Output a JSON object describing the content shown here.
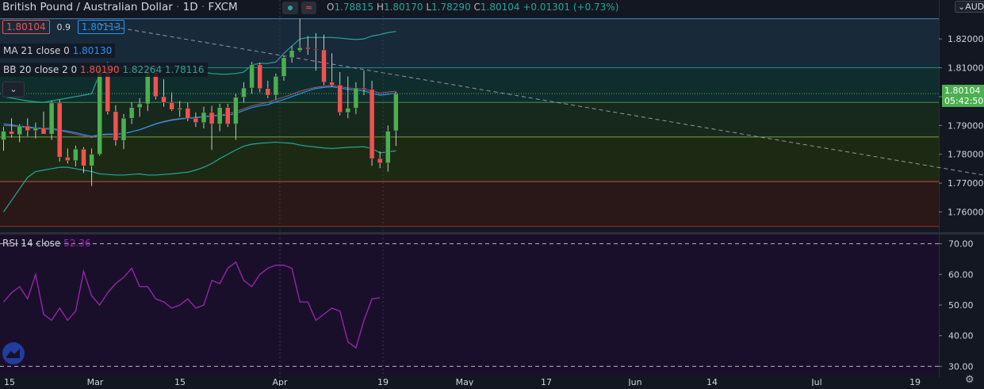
{
  "header": {
    "symbol": "British Pound / Australian Dollar",
    "interval": "1D",
    "exchange": "FXCM",
    "ohlc": [
      {
        "k": "O",
        "v": "1.78815"
      },
      {
        "k": "H",
        "v": "1.80170"
      },
      {
        "k": "L",
        "v": "1.78290"
      },
      {
        "k": "C",
        "v": "1.80104"
      }
    ],
    "change": "+0.01301 (+0.73%)"
  },
  "currency": "AUD",
  "bid_price": "1.80104",
  "spread": "0.9",
  "ask_price": "1.80113",
  "indicators": {
    "ma": {
      "label": "MA 21 close 0",
      "value": "1.80130"
    },
    "bb": {
      "label": "BB 20 close 2 0",
      "basis": "1.80190",
      "upper": "1.82264",
      "lower": "1.78116"
    },
    "rsi": {
      "label": "RSI 14 close",
      "value": "52.36"
    }
  },
  "last_price_tag": "1.80104",
  "countdown": "05:42:50",
  "colors": {
    "up": "#4caf50",
    "down": "#ef5350",
    "bg": "#131722",
    "bb": "#26a69a",
    "ma": "#2196f3",
    "rsi": "#9c27b0"
  },
  "chart_data": {
    "type": "candlestick",
    "price_axis": {
      "min": 1.753,
      "max": 1.8335,
      "ticks": [
        "1.82000",
        "1.81000",
        "1.80000",
        "1.79000",
        "1.78000",
        "1.77000",
        "1.76000"
      ]
    },
    "rsi_axis": {
      "min": 27,
      "max": 73,
      "ticks": [
        "70.00",
        "60.00",
        "50.00",
        "40.00",
        "30.00"
      ],
      "levels": [
        70,
        30
      ]
    },
    "x_ticks": [
      "15",
      "Mar",
      "15",
      "Apr",
      "19",
      "May",
      "17",
      "Jun",
      "14",
      "Jul",
      "19"
    ],
    "candles": [
      {
        "o": 1.785,
        "h": 1.7895,
        "l": 1.7812,
        "c": 1.788
      },
      {
        "o": 1.788,
        "h": 1.7925,
        "l": 1.7858,
        "c": 1.787
      },
      {
        "o": 1.7868,
        "h": 1.7905,
        "l": 1.7842,
        "c": 1.7898
      },
      {
        "o": 1.7898,
        "h": 1.7925,
        "l": 1.7862,
        "c": 1.7882
      },
      {
        "o": 1.7882,
        "h": 1.791,
        "l": 1.7855,
        "c": 1.7892
      },
      {
        "o": 1.7892,
        "h": 1.7948,
        "l": 1.7872,
        "c": 1.787
      },
      {
        "o": 1.787,
        "h": 1.7985,
        "l": 1.785,
        "c": 1.7978
      },
      {
        "o": 1.7978,
        "h": 1.799,
        "l": 1.7775,
        "c": 1.779
      },
      {
        "o": 1.779,
        "h": 1.782,
        "l": 1.7768,
        "c": 1.7778
      },
      {
        "o": 1.7778,
        "h": 1.783,
        "l": 1.7758,
        "c": 1.7818
      },
      {
        "o": 1.7818,
        "h": 1.7825,
        "l": 1.7735,
        "c": 1.776
      },
      {
        "o": 1.776,
        "h": 1.782,
        "l": 1.769,
        "c": 1.78
      },
      {
        "o": 1.78,
        "h": 1.811,
        "l": 1.7795,
        "c": 1.81
      },
      {
        "o": 1.81,
        "h": 1.812,
        "l": 1.7938,
        "c": 1.7948
      },
      {
        "o": 1.7948,
        "h": 1.797,
        "l": 1.783,
        "c": 1.7848
      },
      {
        "o": 1.7848,
        "h": 1.794,
        "l": 1.7818,
        "c": 1.7925
      },
      {
        "o": 1.7925,
        "h": 1.798,
        "l": 1.7905,
        "c": 1.7962
      },
      {
        "o": 1.7962,
        "h": 1.7995,
        "l": 1.793,
        "c": 1.7975
      },
      {
        "o": 1.7975,
        "h": 1.8095,
        "l": 1.795,
        "c": 1.809
      },
      {
        "o": 1.809,
        "h": 1.8105,
        "l": 1.799,
        "c": 1.8
      },
      {
        "o": 1.8,
        "h": 1.806,
        "l": 1.7965,
        "c": 1.798
      },
      {
        "o": 1.798,
        "h": 1.8015,
        "l": 1.795,
        "c": 1.7955
      },
      {
        "o": 1.7955,
        "h": 1.7985,
        "l": 1.793,
        "c": 1.796
      },
      {
        "o": 1.796,
        "h": 1.7978,
        "l": 1.7915,
        "c": 1.7925
      },
      {
        "o": 1.7925,
        "h": 1.7945,
        "l": 1.7895,
        "c": 1.791
      },
      {
        "o": 1.791,
        "h": 1.7965,
        "l": 1.789,
        "c": 1.7945
      },
      {
        "o": 1.7945,
        "h": 1.7968,
        "l": 1.7815,
        "c": 1.7905
      },
      {
        "o": 1.7905,
        "h": 1.7975,
        "l": 1.788,
        "c": 1.7962
      },
      {
        "o": 1.7962,
        "h": 1.7975,
        "l": 1.7895,
        "c": 1.7905
      },
      {
        "o": 1.7905,
        "h": 1.801,
        "l": 1.785,
        "c": 1.7998
      },
      {
        "o": 1.7998,
        "h": 1.805,
        "l": 1.798,
        "c": 1.803
      },
      {
        "o": 1.803,
        "h": 1.812,
        "l": 1.801,
        "c": 1.811
      },
      {
        "o": 1.811,
        "h": 1.8118,
        "l": 1.8015,
        "c": 1.8028
      },
      {
        "o": 1.8028,
        "h": 1.8055,
        "l": 1.7995,
        "c": 1.8005
      },
      {
        "o": 1.8005,
        "h": 1.808,
        "l": 1.799,
        "c": 1.807
      },
      {
        "o": 1.807,
        "h": 1.814,
        "l": 1.8055,
        "c": 1.8135
      },
      {
        "o": 1.8135,
        "h": 1.8175,
        "l": 1.8118,
        "c": 1.816
      },
      {
        "o": 1.816,
        "h": 1.827,
        "l": 1.8155,
        "c": 1.817
      },
      {
        "o": 1.817,
        "h": 1.821,
        "l": 1.8145,
        "c": 1.8165
      },
      {
        "o": 1.8165,
        "h": 1.822,
        "l": 1.809,
        "c": 1.8162
      },
      {
        "o": 1.8162,
        "h": 1.8215,
        "l": 1.804,
        "c": 1.805
      },
      {
        "o": 1.805,
        "h": 1.815,
        "l": 1.8035,
        "c": 1.804
      },
      {
        "o": 1.804,
        "h": 1.8085,
        "l": 1.7935,
        "c": 1.7945
      },
      {
        "o": 1.7945,
        "h": 1.807,
        "l": 1.7925,
        "c": 1.796
      },
      {
        "o": 1.796,
        "h": 1.805,
        "l": 1.794,
        "c": 1.803
      },
      {
        "o": 1.803,
        "h": 1.809,
        "l": 1.8005,
        "c": 1.8025
      },
      {
        "o": 1.8025,
        "h": 1.8055,
        "l": 1.776,
        "c": 1.7785
      },
      {
        "o": 1.7785,
        "h": 1.781,
        "l": 1.7752,
        "c": 1.777
      },
      {
        "o": 1.777,
        "h": 1.79,
        "l": 1.774,
        "c": 1.788
      },
      {
        "o": 1.78815,
        "h": 1.8017,
        "l": 1.7829,
        "c": 1.80104
      }
    ],
    "ma21": [
      1.7905,
      1.7902,
      1.7898,
      1.7895,
      1.7892,
      1.789,
      1.789,
      1.7885,
      1.788,
      1.7875,
      1.7868,
      1.7862,
      1.7868,
      1.787,
      1.787,
      1.7872,
      1.7878,
      1.7885,
      1.7895,
      1.7905,
      1.7912,
      1.7918,
      1.7922,
      1.7925,
      1.7926,
      1.793,
      1.7932,
      1.7935,
      1.7935,
      1.7942,
      1.7952,
      1.7962,
      1.7968,
      1.7972,
      1.7982,
      1.799,
      1.8,
      1.801,
      1.802,
      1.8028,
      1.8032,
      1.8034,
      1.803,
      1.8025,
      1.8022,
      1.802,
      1.8012,
      1.8005,
      1.8008,
      1.8013
    ],
    "bb_basis": [
      1.79,
      1.7898,
      1.7895,
      1.7892,
      1.789,
      1.7888,
      1.7886,
      1.7882,
      1.7876,
      1.787,
      1.7864,
      1.7858,
      1.7866,
      1.7868,
      1.7868,
      1.7872,
      1.7878,
      1.7886,
      1.7896,
      1.7906,
      1.7914,
      1.792,
      1.7924,
      1.7926,
      1.7928,
      1.7932,
      1.7934,
      1.7937,
      1.794,
      1.7948,
      1.7958,
      1.7968,
      1.7974,
      1.798,
      1.799,
      1.7998,
      1.8008,
      1.8018,
      1.8026,
      1.8032,
      1.8036,
      1.8038,
      1.8035,
      1.803,
      1.8028,
      1.8026,
      1.802,
      1.8012,
      1.8016,
      1.8019
    ],
    "bb_upper": [
      1.8,
      1.7995,
      1.799,
      1.7985,
      1.7982,
      1.798,
      1.7985,
      1.799,
      1.7995,
      1.8,
      1.8005,
      1.801,
      1.808,
      1.8095,
      1.81,
      1.8098,
      1.8095,
      1.809,
      1.8095,
      1.81,
      1.8102,
      1.81,
      1.8098,
      1.8095,
      1.809,
      1.8085,
      1.808,
      1.8078,
      1.8078,
      1.808,
      1.8085,
      1.811,
      1.8115,
      1.8115,
      1.812,
      1.815,
      1.8175,
      1.82,
      1.8205,
      1.8205,
      1.8205,
      1.8205,
      1.8203,
      1.82,
      1.8198,
      1.82,
      1.821,
      1.8215,
      1.8222,
      1.8226
    ],
    "bb_lower": [
      1.76,
      1.764,
      1.768,
      1.772,
      1.774,
      1.7745,
      1.775,
      1.7755,
      1.7755,
      1.775,
      1.7745,
      1.774,
      1.7732,
      1.773,
      1.7728,
      1.7728,
      1.773,
      1.7732,
      1.7728,
      1.7728,
      1.773,
      1.7732,
      1.7735,
      1.7738,
      1.7745,
      1.7755,
      1.7768,
      1.7785,
      1.78,
      1.7815,
      1.7828,
      1.7835,
      1.7838,
      1.784,
      1.7842,
      1.784,
      1.7838,
      1.7832,
      1.7828,
      1.7825,
      1.7822,
      1.782,
      1.7822,
      1.7824,
      1.7825,
      1.7826,
      1.782,
      1.7805,
      1.7808,
      1.7812
    ],
    "rsi": [
      51,
      54,
      56,
      52,
      60,
      47,
      45,
      49,
      45,
      48,
      61,
      53,
      50,
      54,
      57,
      59,
      62,
      56,
      56,
      52,
      51,
      49,
      50,
      52,
      49,
      50,
      58,
      57,
      62,
      64,
      58,
      56,
      60,
      62,
      63,
      63,
      62,
      51,
      51,
      45,
      47,
      49,
      48,
      38,
      36,
      45,
      52,
      52.36,
      52.36,
      52.36
    ],
    "trendline": {
      "start": {
        "x_index": 12,
        "price": 1.825
      },
      "end": {
        "x_index": 161,
        "price": 1.7545
      }
    },
    "horizontal_levels": [
      1.827,
      1.81,
      1.798,
      1.786,
      1.7705,
      1.755
    ]
  }
}
